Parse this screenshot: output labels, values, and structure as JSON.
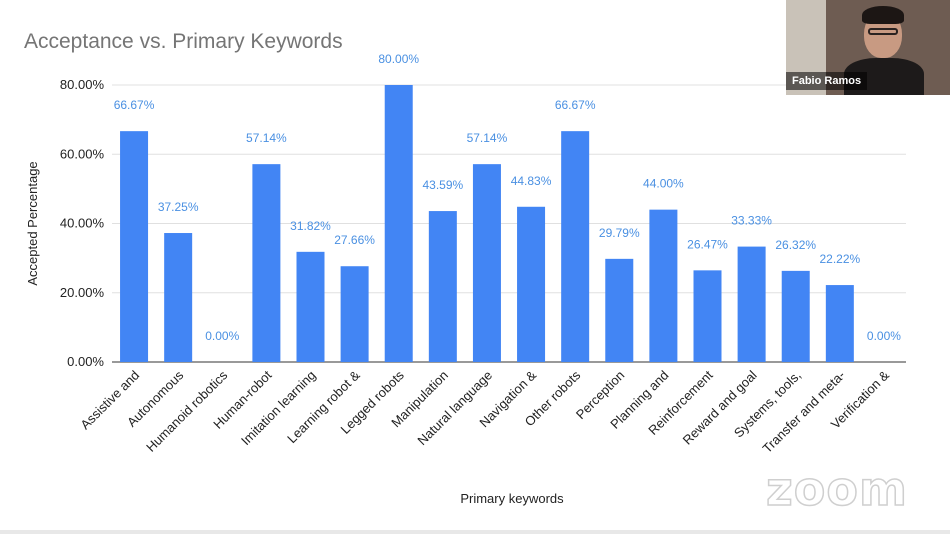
{
  "chart_data": {
    "type": "bar",
    "title": "Acceptance vs. Primary Keywords",
    "xlabel": "Primary keywords",
    "ylabel": "Accepted Percentage",
    "ylim": [
      0,
      80
    ],
    "yticks": [
      "0.00%",
      "20.00%",
      "40.00%",
      "60.00%",
      "80.00%"
    ],
    "grid": true,
    "bar_color": "#4285f4",
    "label_color": "#4a90e2",
    "categories": [
      "Assistive and",
      "Autonomous",
      "Humanoid robotics",
      "Human-robot",
      "Imitation learning",
      "Learning robot &",
      "Legged robots",
      "Manipulation",
      "Natural language",
      "Navigation &",
      "Other robots",
      "Perception",
      "Planning and",
      "Reinforcement",
      "Reward and goal",
      "Systems, tools,",
      "Transfer and meta-",
      "Verification &"
    ],
    "values": [
      66.67,
      37.25,
      0.0,
      57.14,
      31.82,
      27.66,
      80.0,
      43.59,
      57.14,
      44.83,
      66.67,
      29.79,
      44.0,
      26.47,
      33.33,
      26.32,
      22.22,
      0.0
    ],
    "data_labels": [
      "66.67%",
      "37.25%",
      "0.00%",
      "57.14%",
      "31.82%",
      "27.66%",
      "80.00%",
      "43.59%",
      "57.14%",
      "44.83%",
      "66.67%",
      "29.79%",
      "44.00%",
      "26.47%",
      "33.33%",
      "26.32%",
      "22.22%",
      "0.00%"
    ]
  },
  "webcam": {
    "participant_name": "Fabio Ramos"
  },
  "watermark": {
    "text": "zoom"
  }
}
